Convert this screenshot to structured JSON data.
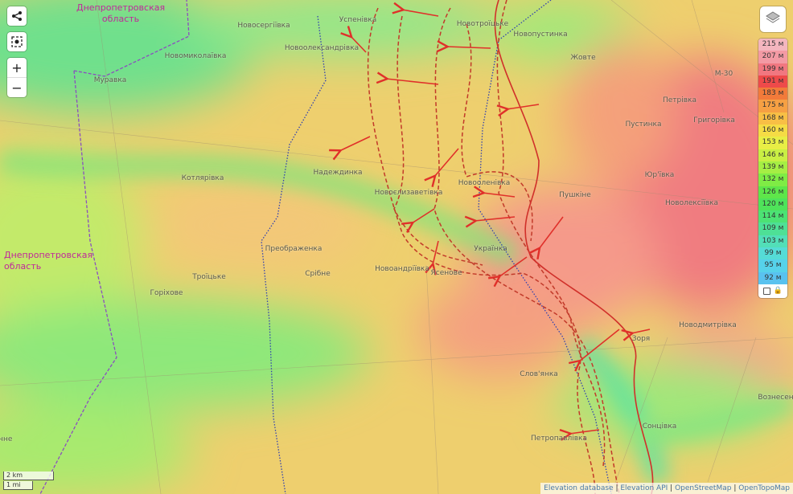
{
  "regions": [
    {
      "name": "Днепропетровская\nобласть",
      "lines": [
        "Днепропетровская",
        "область"
      ]
    },
    {
      "name": "Днепропетровская область left",
      "lines": [
        "Днепропетровская",
        "область"
      ]
    }
  ],
  "places": [
    "Новосергіївка",
    "Успенівка",
    "Новоолександрівка",
    "Новомиколаївка",
    "Муравка",
    "Новотроїцьке",
    "Новопустинка",
    "Жовте",
    "Петрівка",
    "Григорівка",
    "Пустинка",
    "Юр'ївка",
    "Котлярівка",
    "Надеждинка",
    "Новоєлизаветівка",
    "Новооленівка",
    "Пушкіне",
    "Новолексіївка",
    "Преображенка",
    "Українка",
    "Троїцьке",
    "Срібне",
    "Новоандріївка",
    "Ясенове",
    "Горіхове",
    "Новодмитрівка",
    "Зоря",
    "Слов'янка",
    "Сонцівка",
    "Вознесенка",
    "Петропавлівка",
    "чне",
    "М-30"
  ],
  "controls": {
    "share_icon": "share-icon",
    "locate_icon": "locate-icon",
    "zoom_in": "+",
    "zoom_out": "−",
    "layers_icon": "layers-icon"
  },
  "legend": {
    "items": [
      {
        "label": "215 м",
        "color": "#f4b6bf"
      },
      {
        "label": "207 м",
        "color": "#f39aa4"
      },
      {
        "label": "199 м",
        "color": "#f17780"
      },
      {
        "label": "191 м",
        "color": "#ee4a4a"
      },
      {
        "label": "183 м",
        "color": "#f27a3a"
      },
      {
        "label": "175 м",
        "color": "#f6a043"
      },
      {
        "label": "168 м",
        "color": "#f8bf45"
      },
      {
        "label": "160 м",
        "color": "#f5dc45"
      },
      {
        "label": "153 м",
        "color": "#e8ee45"
      },
      {
        "label": "146 м",
        "color": "#c9ef44"
      },
      {
        "label": "139 м",
        "color": "#a6ee44"
      },
      {
        "label": "132 м",
        "color": "#7fec45"
      },
      {
        "label": "126 м",
        "color": "#5ee64a"
      },
      {
        "label": "120 м",
        "color": "#4fe35a"
      },
      {
        "label": "114 м",
        "color": "#4ce274"
      },
      {
        "label": "109 м",
        "color": "#4ee096"
      },
      {
        "label": "103 м",
        "color": "#52dfb8"
      },
      {
        "label": "99 м",
        "color": "#55dcd6"
      },
      {
        "label": "95 м",
        "color": "#56d2ea"
      },
      {
        "label": "92 м",
        "color": "#59c2ef"
      }
    ],
    "lock_icon": "lock-icon"
  },
  "scale": {
    "metric": "2 km",
    "imperial": "1 mi"
  },
  "attribution": [
    "Elevation database",
    "Elevation API",
    "OpenStreetMap",
    "OpenTopoMap"
  ]
}
